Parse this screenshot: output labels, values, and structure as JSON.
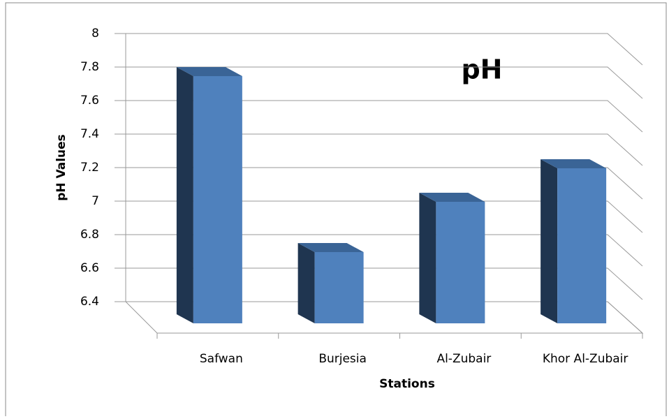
{
  "chart_data": {
    "type": "bar3d",
    "title": "pH",
    "x_label": "Stations",
    "y_label": "pH Values",
    "categories": [
      "Safwan",
      "Burjesia",
      "Al-Zubair",
      "Khor Al-Zubair"
    ],
    "values": [
      7.8,
      6.75,
      7.05,
      7.25
    ],
    "color": "#4f81bd",
    "ylim": [
      6.4,
      8
    ],
    "yticks": [
      6.4,
      6.6,
      6.8,
      7,
      7.2,
      7.4,
      7.6,
      7.8,
      8
    ],
    "grid": true
  }
}
